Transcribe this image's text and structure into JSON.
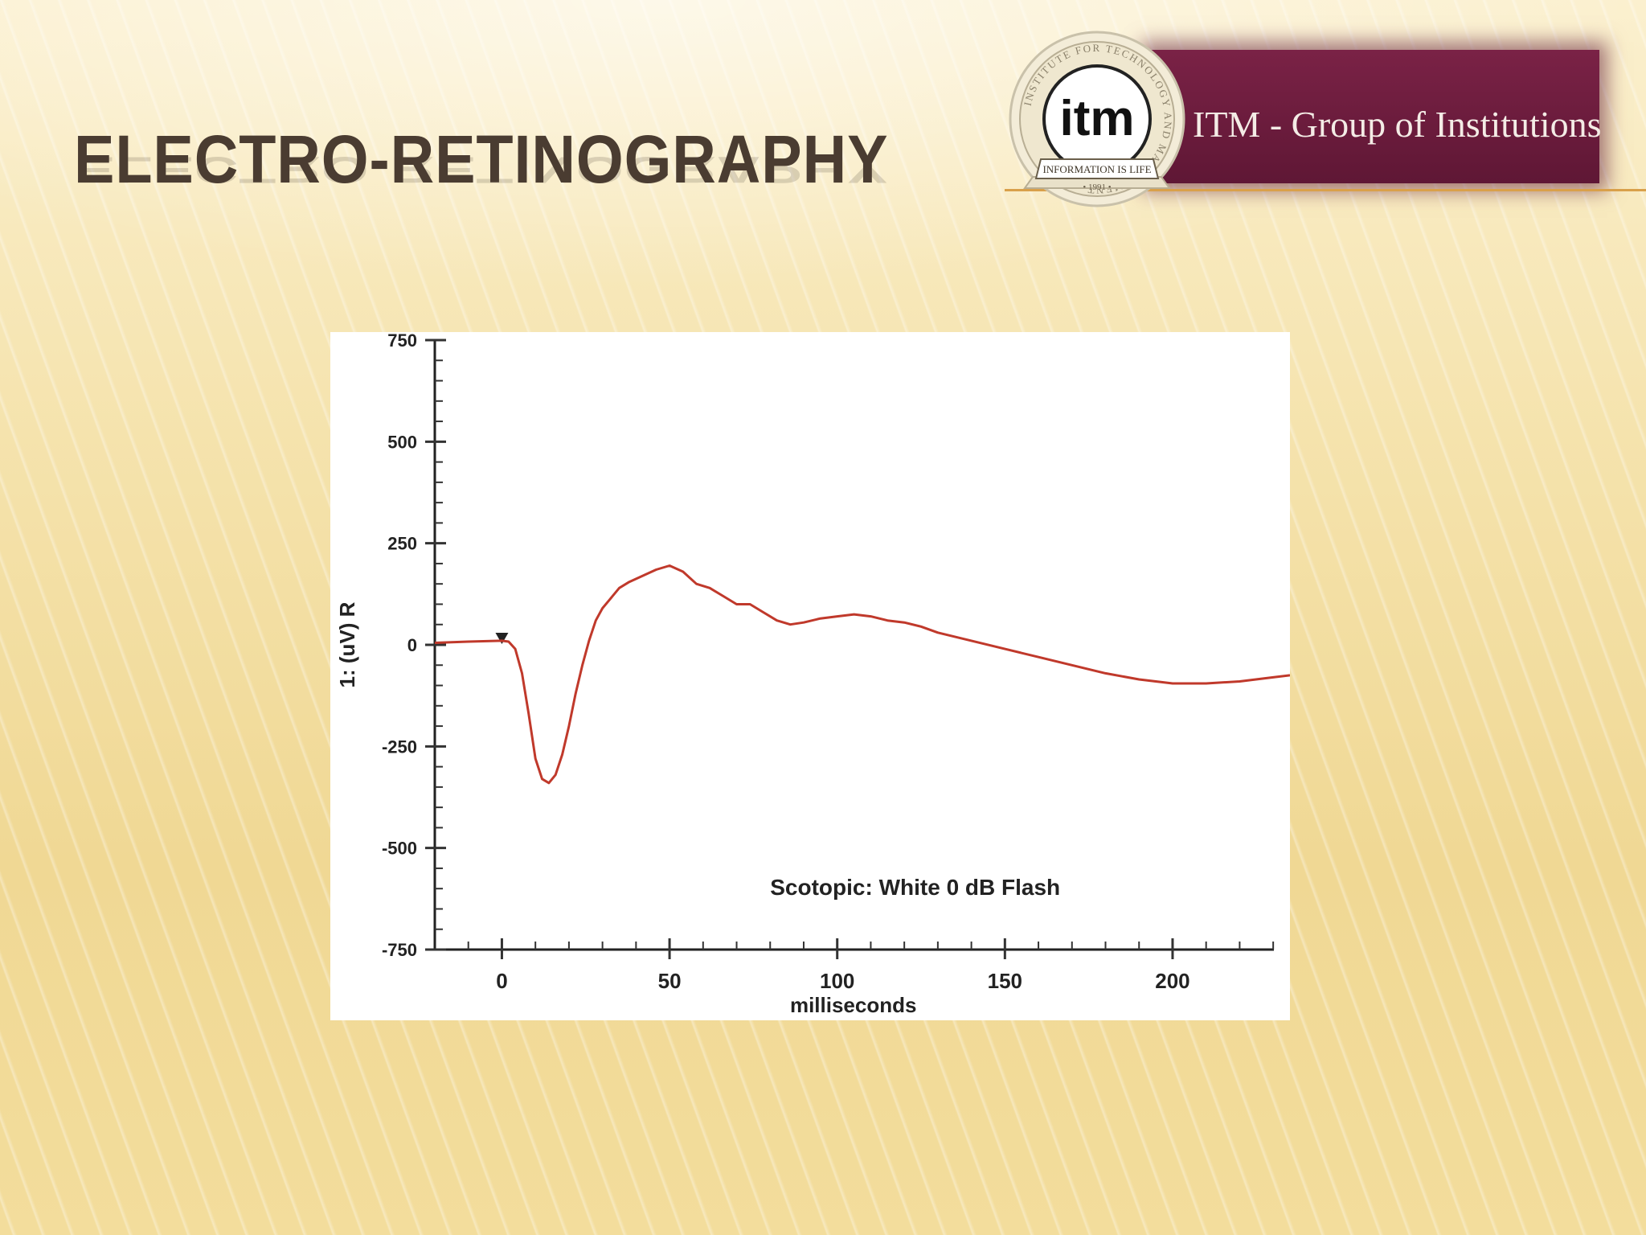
{
  "slide": {
    "title": "ELECTRO-RETINOGRAPHY",
    "banner_text": "ITM - Group of Institutions",
    "logo": {
      "monogram": "itm",
      "ring_text": "INSTITUTE FOR TECHNOLOGY AND MANAGEMENT",
      "ribbon_text": "INFORMATION IS LIFE",
      "year_text": "• 1991 •"
    }
  },
  "colors": {
    "title": "#4a3c31",
    "banner": "#6a1b3d",
    "trace": "#c0392b",
    "accent_rule": "#d9a04a"
  },
  "chart_data": {
    "type": "line",
    "title": "",
    "xlabel": "milliseconds",
    "ylabel": "1: (uV) R",
    "annotation": "Scotopic:   White 0 dB Flash",
    "xlim": [
      -20,
      235
    ],
    "ylim": [
      -750,
      750
    ],
    "x_ticks": [
      0,
      50,
      100,
      150,
      200
    ],
    "x_tick_labels": [
      "0",
      "50",
      "100",
      "150",
      "200"
    ],
    "y_ticks": [
      750,
      500,
      250,
      0,
      -250,
      -500,
      -750
    ],
    "y_tick_labels": [
      "750",
      "500",
      "250",
      "0",
      "-250",
      "-500",
      "-750"
    ],
    "grid": false,
    "legend": "none",
    "series": [
      {
        "x": [
          -20,
          -10,
          0,
          2,
          4,
          6,
          8,
          10,
          12,
          14,
          16,
          18,
          20,
          22,
          24,
          26,
          28,
          30,
          32,
          35,
          38,
          42,
          46,
          50,
          54,
          58,
          62,
          66,
          70,
          74,
          78,
          82,
          86,
          90,
          95,
          100,
          105,
          110,
          115,
          120,
          125,
          130,
          140,
          150,
          160,
          170,
          180,
          190,
          200,
          210,
          220,
          230,
          235
        ],
        "y": [
          5,
          8,
          10,
          8,
          -10,
          -70,
          -170,
          -280,
          -330,
          -340,
          -320,
          -270,
          -200,
          -120,
          -50,
          10,
          60,
          90,
          110,
          140,
          155,
          170,
          185,
          195,
          180,
          150,
          140,
          120,
          100,
          100,
          80,
          60,
          50,
          55,
          65,
          70,
          75,
          70,
          60,
          55,
          45,
          30,
          10,
          -10,
          -30,
          -50,
          -70,
          -85,
          -95,
          -95,
          -90,
          -80,
          -75
        ]
      }
    ]
  }
}
